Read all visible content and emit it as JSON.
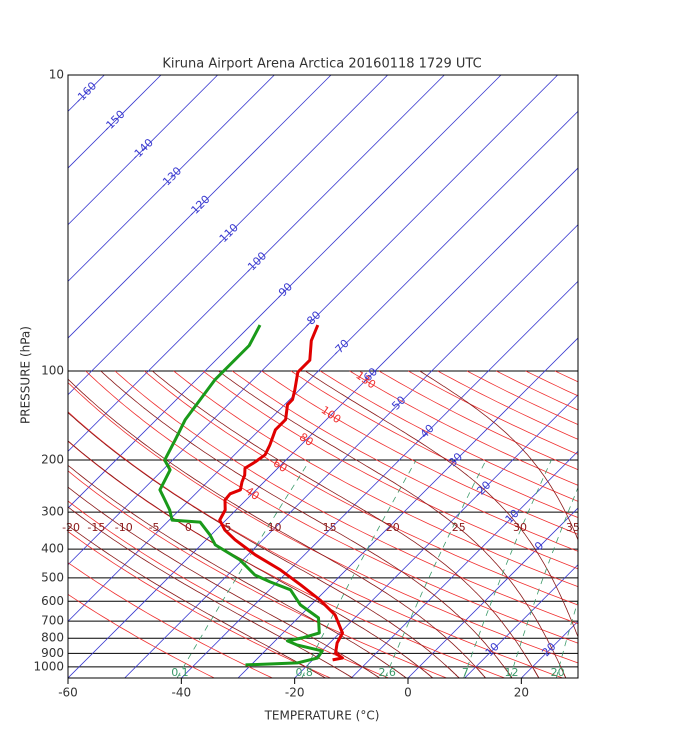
{
  "chart_data": {
    "type": "skewt",
    "title": "Kiruna Airport Arena Arctica 20160118 1729 UTC",
    "xlabel": "TEMPERATURE (°C)",
    "ylabel": "PRESSURE (hPa)",
    "xlim": [
      -60,
      30
    ],
    "xticks": [
      -60,
      -40,
      -20,
      0,
      20
    ],
    "ylim": [
      1090,
      10
    ],
    "yticks": [
      10,
      100,
      200,
      300,
      400,
      500,
      600,
      700,
      800,
      900,
      1000
    ],
    "log_y": true,
    "grid": true,
    "isotherms": {
      "color": "#3a3ad0",
      "values": [
        -160,
        -150,
        -140,
        -130,
        -120,
        -110,
        -100,
        -90,
        -80,
        -70,
        -60,
        -50,
        -40,
        -30,
        -20,
        -10,
        0,
        10,
        20
      ]
    },
    "dry_adiabats": {
      "color": "#f03030",
      "values": [
        -40,
        -30,
        -20,
        -10,
        0,
        10,
        20,
        30,
        40,
        50,
        60,
        70,
        80,
        90,
        100,
        110,
        120,
        130,
        140,
        150,
        160,
        170,
        180,
        190,
        200
      ],
      "labels": [
        130,
        100,
        80,
        60,
        40
      ]
    },
    "moist_adiabats": {
      "color": "#8b1a1a",
      "values": [
        -20,
        -15,
        -10,
        -5,
        0,
        5,
        10,
        15,
        20,
        25,
        30,
        35
      ]
    },
    "mixing_ratios": {
      "color": "#3c9a6a",
      "values": [
        0.1,
        0.8,
        2.6,
        7,
        12,
        20
      ]
    },
    "series": [
      {
        "color": "#e00000",
        "y": [
          70,
          79,
          92,
          101,
          116,
          125,
          130,
          146,
          158,
          178,
          192,
          203,
          213,
          225,
          237,
          252,
          260,
          273,
          295,
          319,
          345,
          372,
          418,
          470,
          528,
          594,
          667,
          768,
          830,
          897,
          933,
          947
        ],
        "x": [
          -78.2,
          -76.6,
          -73.4,
          -73.4,
          -70.8,
          -69.5,
          -69.5,
          -67.2,
          -67.2,
          -65.5,
          -64.6,
          -65.1,
          -65.8,
          -64.6,
          -63.9,
          -62.8,
          -63.9,
          -63.7,
          -61.9,
          -61.1,
          -58.4,
          -54.9,
          -48.7,
          -41.6,
          -35.4,
          -29.3,
          -24.0,
          -19.5,
          -18.7,
          -17.2,
          -15.1,
          -16.5
        ]
      },
      {
        "color": "#1a9a1a",
        "y": [
          70,
          82,
          92,
          107,
          125,
          146,
          171,
          200,
          216,
          234,
          252,
          273,
          295,
          319,
          324,
          358,
          387,
          435,
          489,
          516,
          549,
          617,
          683,
          768,
          798,
          817,
          843,
          883,
          933,
          969,
          984
        ],
        "x": [
          -88.4,
          -86.7,
          -86.7,
          -86.7,
          -85.8,
          -84.9,
          -83.1,
          -81.4,
          -78.7,
          -77.8,
          -77.0,
          -74.3,
          -71.7,
          -69.5,
          -64.2,
          -60.2,
          -57.5,
          -50.5,
          -45.2,
          -41.3,
          -36.3,
          -31.9,
          -26.4,
          -23.6,
          -25.7,
          -27.8,
          -25.4,
          -19.9,
          -19.5,
          -22.2,
          -31.0
        ]
      }
    ]
  }
}
